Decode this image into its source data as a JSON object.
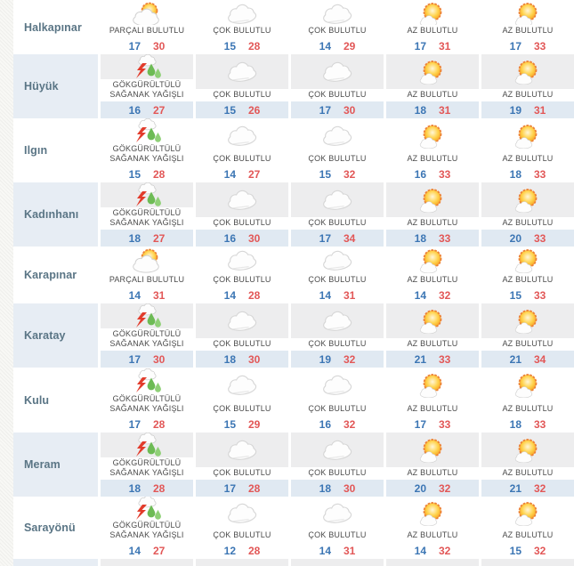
{
  "table": {
    "columns_per_district": 5,
    "districts": [
      {
        "name": "Halkapınar",
        "forecasts": [
          {
            "condition": "PARÇALI BULUTLU",
            "icon": "sun-behind-cloud",
            "min": "17",
            "max": "30"
          },
          {
            "condition": "ÇOK BULUTLU",
            "icon": "cloud",
            "min": "15",
            "max": "28"
          },
          {
            "condition": "ÇOK BULUTLU",
            "icon": "cloud",
            "min": "14",
            "max": "29"
          },
          {
            "condition": "AZ BULUTLU",
            "icon": "sun-small-cloud",
            "min": "17",
            "max": "31"
          },
          {
            "condition": "AZ BULUTLU",
            "icon": "sun-small-cloud",
            "min": "17",
            "max": "33"
          }
        ]
      },
      {
        "name": "Hüyük",
        "forecasts": [
          {
            "condition": "GÖKGÜRÜLTÜLÜ SAĞANAK YAĞIŞLI",
            "icon": "thunderstorm-rain",
            "min": "16",
            "max": "27"
          },
          {
            "condition": "ÇOK BULUTLU",
            "icon": "cloud",
            "min": "15",
            "max": "26"
          },
          {
            "condition": "ÇOK BULUTLU",
            "icon": "cloud",
            "min": "17",
            "max": "30"
          },
          {
            "condition": "AZ BULUTLU",
            "icon": "sun-small-cloud",
            "min": "18",
            "max": "31"
          },
          {
            "condition": "AZ BULUTLU",
            "icon": "sun-small-cloud",
            "min": "19",
            "max": "31"
          }
        ]
      },
      {
        "name": "Ilgın",
        "forecasts": [
          {
            "condition": "GÖKGÜRÜLTÜLÜ SAĞANAK YAĞIŞLI",
            "icon": "thunderstorm-rain",
            "min": "15",
            "max": "28"
          },
          {
            "condition": "ÇOK BULUTLU",
            "icon": "cloud",
            "min": "14",
            "max": "27"
          },
          {
            "condition": "ÇOK BULUTLU",
            "icon": "cloud",
            "min": "15",
            "max": "32"
          },
          {
            "condition": "AZ BULUTLU",
            "icon": "sun-small-cloud",
            "min": "16",
            "max": "33"
          },
          {
            "condition": "AZ BULUTLU",
            "icon": "sun-small-cloud",
            "min": "18",
            "max": "33"
          }
        ]
      },
      {
        "name": "Kadınhanı",
        "forecasts": [
          {
            "condition": "GÖKGÜRÜLTÜLÜ SAĞANAK YAĞIŞLI",
            "icon": "thunderstorm-rain",
            "min": "18",
            "max": "27"
          },
          {
            "condition": "ÇOK BULUTLU",
            "icon": "cloud",
            "min": "16",
            "max": "30"
          },
          {
            "condition": "ÇOK BULUTLU",
            "icon": "cloud",
            "min": "17",
            "max": "34"
          },
          {
            "condition": "AZ BULUTLU",
            "icon": "sun-small-cloud",
            "min": "18",
            "max": "33"
          },
          {
            "condition": "AZ BULUTLU",
            "icon": "sun-small-cloud",
            "min": "20",
            "max": "33"
          }
        ]
      },
      {
        "name": "Karapınar",
        "forecasts": [
          {
            "condition": "PARÇALI BULUTLU",
            "icon": "sun-behind-cloud",
            "min": "14",
            "max": "31"
          },
          {
            "condition": "ÇOK BULUTLU",
            "icon": "cloud",
            "min": "14",
            "max": "28"
          },
          {
            "condition": "ÇOK BULUTLU",
            "icon": "cloud",
            "min": "14",
            "max": "31"
          },
          {
            "condition": "AZ BULUTLU",
            "icon": "sun-small-cloud",
            "min": "14",
            "max": "32"
          },
          {
            "condition": "AZ BULUTLU",
            "icon": "sun-small-cloud",
            "min": "15",
            "max": "33"
          }
        ]
      },
      {
        "name": "Karatay",
        "forecasts": [
          {
            "condition": "GÖKGÜRÜLTÜLÜ SAĞANAK YAĞIŞLI",
            "icon": "thunderstorm-rain",
            "min": "17",
            "max": "30"
          },
          {
            "condition": "ÇOK BULUTLU",
            "icon": "cloud",
            "min": "18",
            "max": "30"
          },
          {
            "condition": "ÇOK BULUTLU",
            "icon": "cloud",
            "min": "19",
            "max": "32"
          },
          {
            "condition": "AZ BULUTLU",
            "icon": "sun-small-cloud",
            "min": "21",
            "max": "33"
          },
          {
            "condition": "AZ BULUTLU",
            "icon": "sun-small-cloud",
            "min": "21",
            "max": "34"
          }
        ]
      },
      {
        "name": "Kulu",
        "forecasts": [
          {
            "condition": "GÖKGÜRÜLTÜLÜ SAĞANAK YAĞIŞLI",
            "icon": "thunderstorm-rain",
            "min": "17",
            "max": "28"
          },
          {
            "condition": "ÇOK BULUTLU",
            "icon": "cloud",
            "min": "15",
            "max": "29"
          },
          {
            "condition": "ÇOK BULUTLU",
            "icon": "cloud",
            "min": "16",
            "max": "32"
          },
          {
            "condition": "AZ BULUTLU",
            "icon": "sun-small-cloud",
            "min": "17",
            "max": "33"
          },
          {
            "condition": "AZ BULUTLU",
            "icon": "sun-small-cloud",
            "min": "18",
            "max": "33"
          }
        ]
      },
      {
        "name": "Meram",
        "forecasts": [
          {
            "condition": "GÖKGÜRÜLTÜLÜ SAĞANAK YAĞIŞLI",
            "icon": "thunderstorm-rain",
            "min": "18",
            "max": "28"
          },
          {
            "condition": "ÇOK BULUTLU",
            "icon": "cloud",
            "min": "17",
            "max": "28"
          },
          {
            "condition": "ÇOK BULUTLU",
            "icon": "cloud",
            "min": "18",
            "max": "30"
          },
          {
            "condition": "AZ BULUTLU",
            "icon": "sun-small-cloud",
            "min": "20",
            "max": "32"
          },
          {
            "condition": "AZ BULUTLU",
            "icon": "sun-small-cloud",
            "min": "21",
            "max": "32"
          }
        ]
      },
      {
        "name": "Sarayönü",
        "forecasts": [
          {
            "condition": "GÖKGÜRÜLTÜLÜ SAĞANAK YAĞIŞLI",
            "icon": "thunderstorm-rain",
            "min": "14",
            "max": "27"
          },
          {
            "condition": "ÇOK BULUTLU",
            "icon": "cloud",
            "min": "12",
            "max": "28"
          },
          {
            "condition": "ÇOK BULUTLU",
            "icon": "cloud",
            "min": "14",
            "max": "31"
          },
          {
            "condition": "AZ BULUTLU",
            "icon": "sun-small-cloud",
            "min": "14",
            "max": "32"
          },
          {
            "condition": "AZ BULUTLU",
            "icon": "sun-small-cloud",
            "min": "15",
            "max": "32"
          }
        ]
      }
    ]
  },
  "colors": {
    "min_temp": "#3c76b4",
    "max_temp": "#e25757",
    "district_name": "#5a7585",
    "condition_text": "#4b4b4b",
    "shaded_name_bg": "#e7edf4",
    "shaded_icon_bg": "#ededee",
    "shaded_temp_bg": "#e0e9f2",
    "sun_orange": "#f59b1e",
    "lightning_red": "#e23b2b",
    "rain_green": "#6dbb55"
  }
}
